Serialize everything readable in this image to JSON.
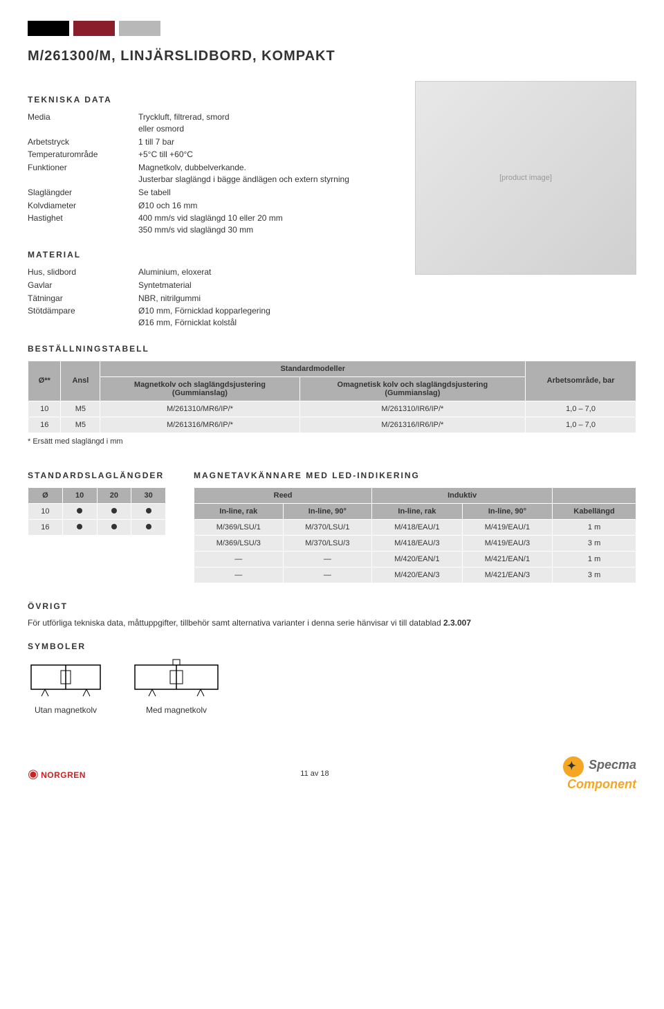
{
  "header_bars": {
    "colors": [
      "#000000",
      "#8a1f2b",
      "#b8b8b8"
    ]
  },
  "title": "M/261300/M, LINJÄRSLIDBORD, KOMPAKT",
  "sections": {
    "tekniska": "TEKNISKA DATA",
    "material": "MATERIAL",
    "bestallning": "BESTÄLLNINGSTABELL",
    "standardslag": "STANDARDSLAGLÄNGDER",
    "magnet": "MAGNETAVKÄNNARE MED LED-INDIKERING",
    "ovrigt": "ÖVRIGT",
    "symboler": "SYMBOLER"
  },
  "tekniska_rows": [
    {
      "label": "Media",
      "value": "Tryckluft, filtrerad, smord\neller osmord"
    },
    {
      "label": "Arbetstryck",
      "value": "1 till 7 bar"
    },
    {
      "label": "Temperaturområde",
      "value": "+5°C till +60°C"
    },
    {
      "label": "Funktioner",
      "value": "Magnetkolv, dubbelverkande.\nJusterbar slaglängd i bägge ändlägen och extern styrning"
    },
    {
      "label": "Slaglängder",
      "value": "Se tabell"
    },
    {
      "label": "Kolvdiameter",
      "value": "Ø10 och 16 mm"
    },
    {
      "label": "Hastighet",
      "value": "400 mm/s vid slaglängd 10 eller 20 mm\n350 mm/s vid slaglängd 30 mm"
    }
  ],
  "material_rows": [
    {
      "label": "Hus, slidbord",
      "value": "Aluminium, eloxerat"
    },
    {
      "label": "Gavlar",
      "value": "Syntetmaterial"
    },
    {
      "label": "Tätningar",
      "value": "NBR, nitrilgummi"
    },
    {
      "label": "Stötdämpare",
      "value": "Ø10 mm, Förnicklad kopparlegering\nØ16 mm, Förnicklat kolstål"
    }
  ],
  "ordering": {
    "super_header": "Standardmodeller",
    "headers": {
      "diam": "Ø**",
      "ansl": "Ansl",
      "mag": "Magnetkolv och slaglängdsjustering\n(Gummianslag)",
      "omag": "Omagnetisk kolv och slaglängdsjustering\n(Gummianslag)",
      "arbets": "Arbetsområde, bar"
    },
    "rows": [
      {
        "diam": "10",
        "ansl": "M5",
        "mag": "M/261310/MR6/IP/*",
        "omag": "M/261310/IR6/IP/*",
        "arbets": "1,0 – 7,0"
      },
      {
        "diam": "16",
        "ansl": "M5",
        "mag": "M/261316/MR6/IP/*",
        "omag": "M/261316/IR6/IP/*",
        "arbets": "1,0 – 7,0"
      }
    ],
    "footnote": "* Ersätt med slaglängd i mm"
  },
  "slag": {
    "headers": [
      "Ø",
      "10",
      "20",
      "30"
    ],
    "rows": [
      [
        "10",
        true,
        true,
        true
      ],
      [
        "16",
        true,
        true,
        true
      ]
    ]
  },
  "sensors": {
    "group_headers": [
      "Reed",
      "Induktiv",
      ""
    ],
    "sub_headers": [
      "In-line, rak",
      "In-line, 90°",
      "In-line, rak",
      "In-line, 90°",
      "Kabellängd"
    ],
    "rows": [
      [
        "M/369/LSU/1",
        "M/370/LSU/1",
        "M/418/EAU/1",
        "M/419/EAU/1",
        "1 m"
      ],
      [
        "M/369/LSU/3",
        "M/370/LSU/3",
        "M/418/EAU/3",
        "M/419/EAU/3",
        "3 m"
      ],
      [
        "—",
        "—",
        "M/420/EAN/1",
        "M/421/EAN/1",
        "1 m"
      ],
      [
        "—",
        "—",
        "M/420/EAN/3",
        "M/421/EAN/3",
        "3 m"
      ]
    ]
  },
  "ovrigt_text_pre": "För utförliga tekniska data, måttuppgifter, tillbehör samt alternativa varianter i denna serie hänvisar vi till datablad ",
  "ovrigt_text_bold": "2.3.007",
  "symbols": {
    "left": "Utan magnetkolv",
    "right": "Med magnetkolv"
  },
  "footer": {
    "left": "NORGREN",
    "center": "11 av 18",
    "right_top": "Specma",
    "right_bot": "Component"
  },
  "photo_placeholder": "[product image]"
}
